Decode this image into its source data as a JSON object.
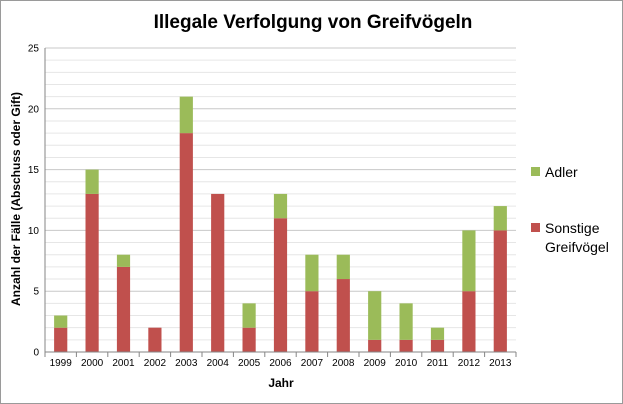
{
  "chart_data": {
    "type": "bar",
    "stacked": true,
    "title": "Illegale Verfolgung von Greifvögeln",
    "xlabel": "Jahr",
    "ylabel": "Anzahl der Fälle (Abschuss oder Gift)",
    "ylim": [
      0,
      25
    ],
    "yticks": [
      0,
      5,
      10,
      15,
      20,
      25
    ],
    "grid": true,
    "legend_position": "right",
    "categories": [
      "1999",
      "2000",
      "2001",
      "2002",
      "2003",
      "2004",
      "2005",
      "2006",
      "2007",
      "2008",
      "2009",
      "2010",
      "2011",
      "2012",
      "2013"
    ],
    "series": [
      {
        "name": "Sonstige Greifvögel",
        "color": "#c0504d",
        "values": [
          2,
          13,
          7,
          2,
          18,
          13,
          2,
          11,
          5,
          6,
          1,
          1,
          1,
          5,
          10
        ]
      },
      {
        "name": "Adler",
        "color": "#9bbb59",
        "values": [
          1,
          2,
          1,
          0,
          3,
          0,
          2,
          2,
          3,
          2,
          4,
          3,
          1,
          5,
          2
        ]
      }
    ],
    "legend": [
      {
        "lines": [
          "Adler"
        ],
        "color": "#9bbb59"
      },
      {
        "lines": [
          "Sonstige",
          "Greifvögel"
        ],
        "color": "#c0504d"
      }
    ]
  }
}
